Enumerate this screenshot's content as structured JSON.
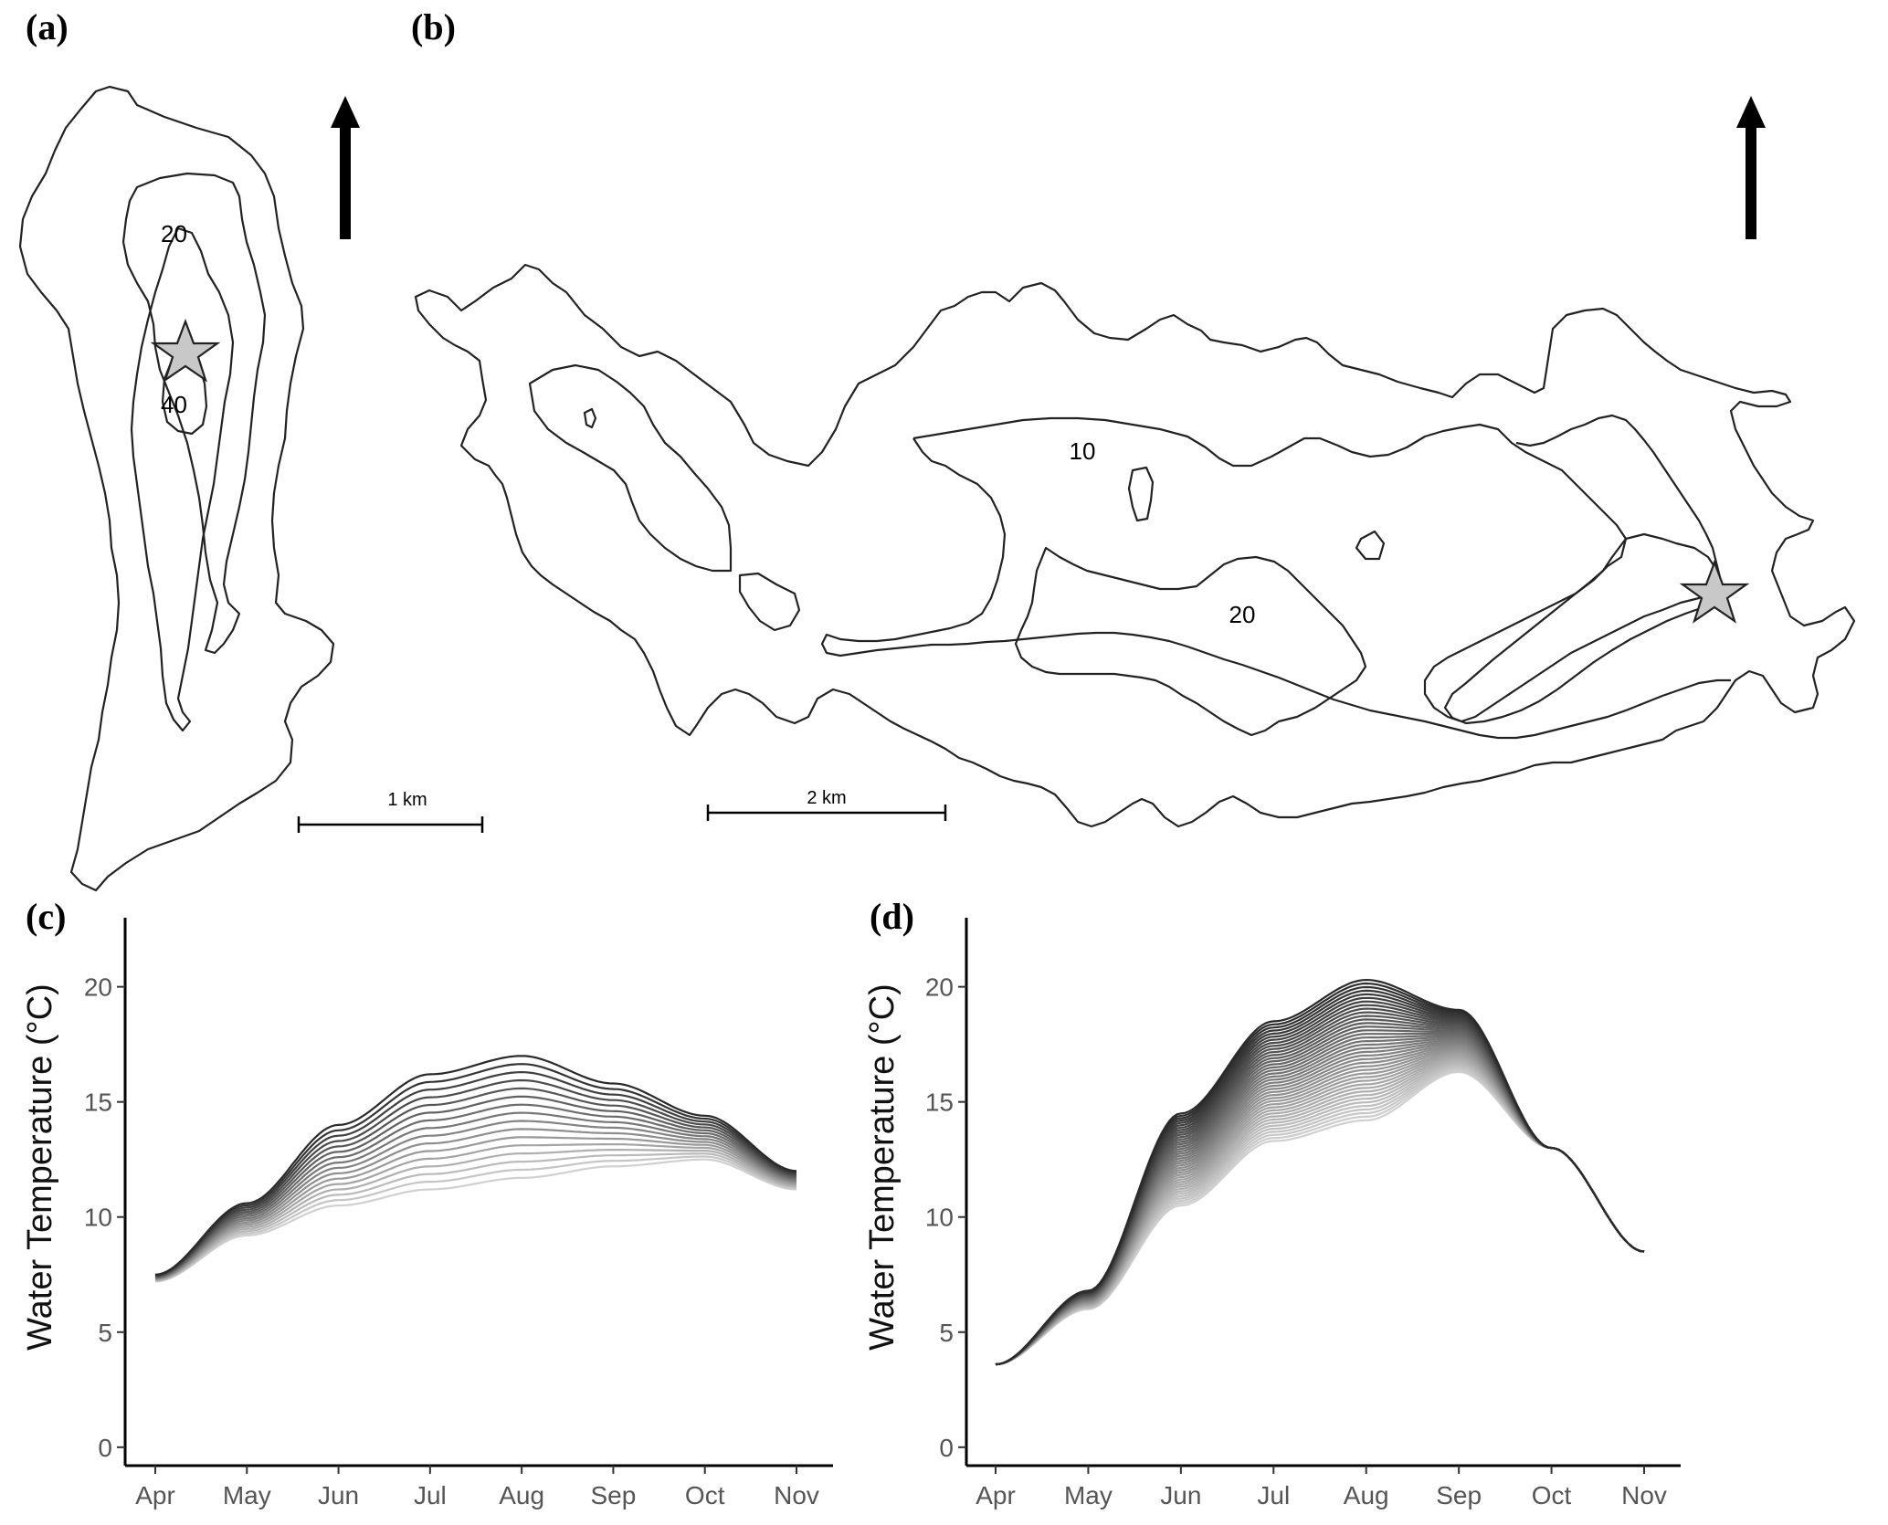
{
  "panels": {
    "a": "(a)",
    "b": "(b)",
    "c": "(c)",
    "d": "(d)"
  },
  "map_a": {
    "contour_labels": [
      "20",
      "40"
    ],
    "scale_label": "1 km",
    "north_arrow": "north-arrow-icon",
    "site_marker": "star-icon"
  },
  "map_b": {
    "contour_labels": [
      "10",
      "20"
    ],
    "scale_label": "2 km",
    "north_arrow": "north-arrow-icon",
    "site_marker": "star-icon"
  },
  "chart_data": [
    {
      "type": "line",
      "panel": "(c)",
      "ylabel": "Water Temperature (°C)",
      "xlabel": "",
      "x_ticks": [
        "Apr",
        "May",
        "Jun",
        "Jul",
        "Aug",
        "Sep",
        "Oct",
        "Nov"
      ],
      "y_ticks": [
        0,
        5,
        10,
        15,
        20
      ],
      "ylim": [
        -0.8,
        23.0
      ],
      "grid": false,
      "legend": "none",
      "color_scale": [
        "#2a2a2a",
        "#d0d0d0"
      ],
      "series_count": 16,
      "series_description": "depth profiles, surface darkest to deepest lightest",
      "surface_profile": {
        "x": [
          "Apr",
          "May",
          "Jun",
          "Jul",
          "Aug",
          "Sep",
          "Oct",
          "Nov"
        ],
        "y": [
          7.5,
          10.6,
          14.0,
          16.2,
          17.0,
          15.8,
          14.4,
          12.0
        ]
      },
      "bottom_profile": {
        "x": [
          "Apr",
          "May",
          "Jun",
          "Jul",
          "Aug",
          "Sep",
          "Oct",
          "Nov"
        ],
        "y": [
          7.2,
          9.2,
          10.5,
          11.2,
          11.7,
          12.2,
          12.5,
          11.2
        ]
      }
    },
    {
      "type": "line",
      "panel": "(d)",
      "ylabel": "Water Temperature (°C)",
      "xlabel": "",
      "x_ticks": [
        "Apr",
        "May",
        "Jun",
        "Jul",
        "Aug",
        "Sep",
        "Oct",
        "Nov"
      ],
      "y_ticks": [
        0,
        5,
        10,
        15,
        20
      ],
      "ylim": [
        -0.8,
        23.0
      ],
      "grid": false,
      "legend": "none",
      "color_scale": [
        "#2a2a2a",
        "#d0d0d0"
      ],
      "series_count": 40,
      "series_description": "depth profiles, surface darkest to deepest lightest",
      "surface_profile": {
        "x": [
          "Apr",
          "May",
          "Jun",
          "Jul",
          "Aug",
          "Sep",
          "Oct",
          "Nov"
        ],
        "y": [
          3.6,
          6.8,
          14.5,
          18.5,
          20.3,
          19.0,
          13.0,
          8.5
        ]
      },
      "bottom_profile": {
        "x": [
          "Apr",
          "May",
          "Jun",
          "Jul",
          "Aug",
          "Sep",
          "Oct",
          "Nov"
        ],
        "y": [
          3.6,
          6.0,
          10.5,
          13.3,
          14.2,
          16.3,
          13.0,
          8.5
        ]
      }
    }
  ]
}
